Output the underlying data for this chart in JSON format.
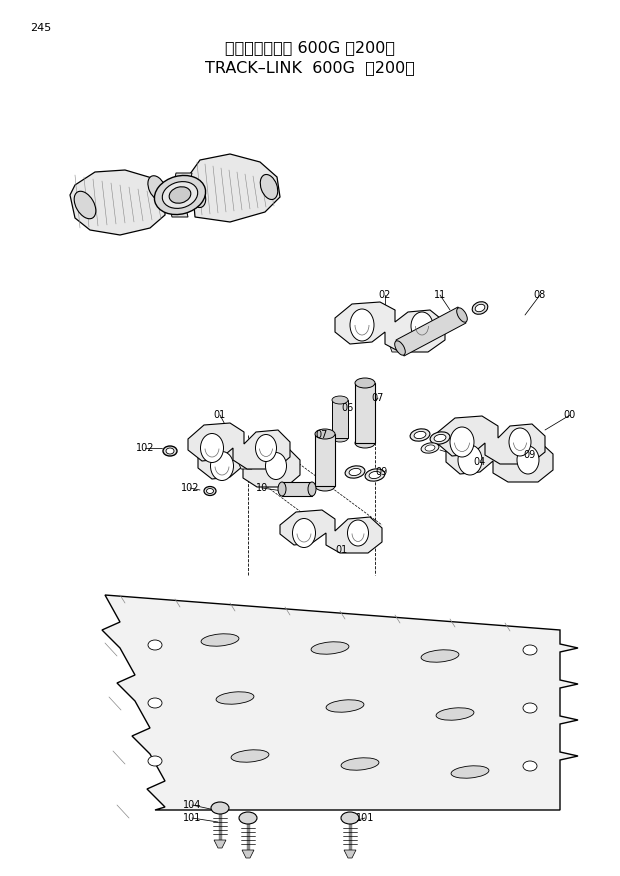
{
  "page_number": "245",
  "title_japanese": "トラックリンク 600G 　2000）",
  "title_english": "TRACK–LINK  600G  《200》",
  "background_color": "#ffffff",
  "text_color": "#000000",
  "fig_width": 6.2,
  "fig_height": 8.76,
  "dpi": 100,
  "title_fontsize": 11.5,
  "page_num_fontsize": 8,
  "label_fontsize": 7
}
